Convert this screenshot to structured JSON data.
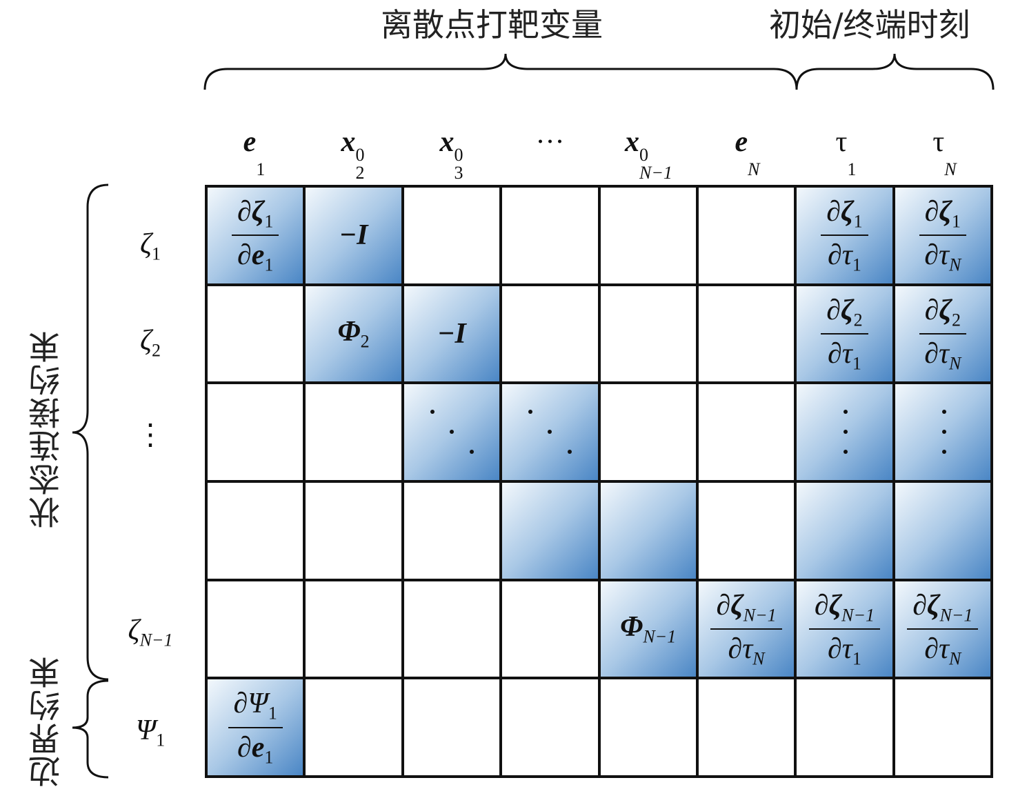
{
  "top_labels": {
    "discrete_vars": "离散点打靶变量",
    "time_vars": "初始/终端时刻"
  },
  "left_labels": {
    "state_constraints": "状态连接约束",
    "boundary_constraints": "边界约束"
  },
  "columns": [
    {
      "sym": "e",
      "bold": true,
      "sub": "1",
      "sup": ""
    },
    {
      "sym": "x",
      "bold": true,
      "sub": "2",
      "sup": "0"
    },
    {
      "sym": "x",
      "bold": true,
      "sub": "3",
      "sup": "0"
    },
    {
      "sym": "···",
      "bold": false,
      "sub": "",
      "sup": ""
    },
    {
      "sym": "x",
      "bold": true,
      "sub": "N−1",
      "sup": "0"
    },
    {
      "sym": "e",
      "bold": true,
      "sub": "N",
      "sup": ""
    },
    {
      "sym": "τ",
      "bold": false,
      "sub": "1",
      "sup": ""
    },
    {
      "sym": "τ",
      "bold": false,
      "sub": "N",
      "sup": ""
    }
  ],
  "rows": [
    {
      "sym": "ζ",
      "sub": "1"
    },
    {
      "sym": "ζ",
      "sub": "2"
    },
    {
      "sym": "⋮",
      "sub": ""
    },
    {
      "sym": "",
      "sub": ""
    },
    {
      "sym": "ζ",
      "sub": "N−1"
    },
    {
      "sym": "Ψ",
      "sub": "1"
    }
  ],
  "colors": {
    "shade_light": "#f3f8fc",
    "shade_dark": "#4a86c5",
    "grid_line": "#111111"
  },
  "cells": [
    [
      {
        "type": "frac",
        "num": {
          "sym": "ζ",
          "sub": "1",
          "bold": true
        },
        "den": {
          "sym": "e",
          "sub": "1",
          "bold": true
        }
      },
      {
        "type": "text",
        "sym": "−I",
        "sub": ""
      },
      null,
      null,
      null,
      null,
      {
        "type": "frac",
        "num": {
          "sym": "ζ",
          "sub": "1",
          "bold": true
        },
        "den": {
          "sym": "τ",
          "sub": "1",
          "bold": false
        }
      },
      {
        "type": "frac",
        "num": {
          "sym": "ζ",
          "sub": "1",
          "bold": true
        },
        "den": {
          "sym": "τ",
          "sub": "N",
          "bold": false
        }
      }
    ],
    [
      null,
      {
        "type": "text",
        "sym": "Φ",
        "sub": "2"
      },
      {
        "type": "text",
        "sym": "−I",
        "sub": ""
      },
      null,
      null,
      null,
      {
        "type": "frac",
        "num": {
          "sym": "ζ",
          "sub": "2",
          "bold": true
        },
        "den": {
          "sym": "τ",
          "sub": "1",
          "bold": false
        }
      },
      {
        "type": "frac",
        "num": {
          "sym": "ζ",
          "sub": "2",
          "bold": true
        },
        "den": {
          "sym": "τ",
          "sub": "N",
          "bold": false
        }
      }
    ],
    [
      null,
      null,
      {
        "type": "ddots"
      },
      {
        "type": "ddots"
      },
      null,
      null,
      {
        "type": "vdots"
      },
      {
        "type": "vdots"
      }
    ],
    [
      null,
      null,
      null,
      {
        "type": "shade"
      },
      {
        "type": "shade"
      },
      null,
      {
        "type": "shade"
      },
      {
        "type": "shade"
      }
    ],
    [
      null,
      null,
      null,
      null,
      {
        "type": "text",
        "sym": "Φ",
        "sub": "N−1"
      },
      {
        "type": "frac",
        "num": {
          "sym": "ζ",
          "sub": "N−1",
          "bold": true
        },
        "den": {
          "sym": "τ",
          "sub": "N",
          "bold": false
        }
      },
      {
        "type": "frac",
        "num": {
          "sym": "ζ",
          "sub": "N−1",
          "bold": true
        },
        "den": {
          "sym": "τ",
          "sub": "1",
          "bold": false
        }
      },
      {
        "type": "frac",
        "num": {
          "sym": "ζ",
          "sub": "N−1",
          "bold": true
        },
        "den": {
          "sym": "τ",
          "sub": "N",
          "bold": false
        }
      }
    ],
    [
      {
        "type": "frac",
        "num": {
          "sym": "Ψ",
          "sub": "1",
          "bold": false
        },
        "den": {
          "sym": "e",
          "sub": "1",
          "bold": true
        }
      },
      null,
      null,
      null,
      null,
      null,
      null,
      null
    ]
  ]
}
